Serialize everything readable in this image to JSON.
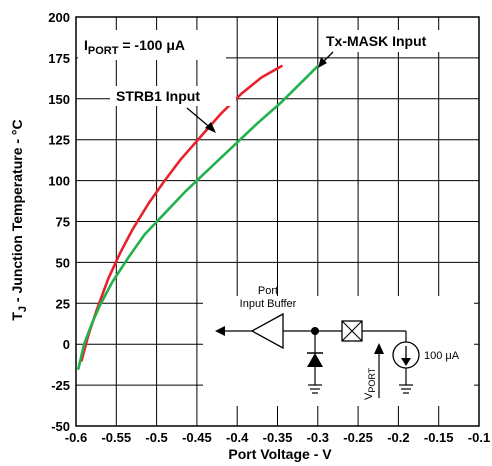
{
  "chart_data": {
    "type": "line",
    "xlabel": "Port Voltage - V",
    "ylabel_main": "T",
    "ylabel_sub": "J",
    "ylabel_rest": " - Junction Temperature - °C",
    "xlim": [
      -0.6,
      -0.1
    ],
    "ylim": [
      -50,
      200
    ],
    "x_ticks": [
      "-0.6",
      "-0.55",
      "-0.5",
      "-0.45",
      "-0.4",
      "-0.35",
      "-0.3",
      "-0.25",
      "-0.2",
      "-0.15",
      "-0.1"
    ],
    "y_ticks": [
      "200",
      "175",
      "150",
      "125",
      "100",
      "75",
      "50",
      "25",
      "0",
      "-25",
      "-50"
    ],
    "grid": true,
    "series": [
      {
        "name": "STRB1 Input",
        "color": "#e8212e",
        "x": [
          -0.593,
          -0.585,
          -0.575,
          -0.56,
          -0.545,
          -0.53,
          -0.51,
          -0.49,
          -0.47,
          -0.445,
          -0.42,
          -0.395,
          -0.37,
          -0.345
        ],
        "y": [
          -10,
          5,
          20,
          40,
          56,
          70,
          86,
          100,
          113,
          127,
          141,
          153,
          163,
          170
        ]
      },
      {
        "name": "Tx-MASK Input",
        "color": "#22b14c",
        "x": [
          -0.597,
          -0.59,
          -0.58,
          -0.57,
          -0.555,
          -0.535,
          -0.515,
          -0.49,
          -0.465,
          -0.435,
          -0.405,
          -0.375,
          -0.345,
          -0.3
        ],
        "y": [
          -15,
          0,
          13,
          24,
          38,
          53,
          67,
          80,
          93,
          107,
          121,
          135,
          148,
          170
        ]
      }
    ],
    "annotations": {
      "iport_main": "I",
      "iport_sub": "PORT",
      "iport_rest": " = -100 μA",
      "strb1": "STRB1 Input",
      "txmask": "Tx-MASK Input"
    },
    "inset": {
      "buffer_line1": "Port",
      "buffer_line2": "Input Buffer",
      "current": "100 μA",
      "vport_main": "V",
      "vport_sub": "PORT"
    }
  }
}
